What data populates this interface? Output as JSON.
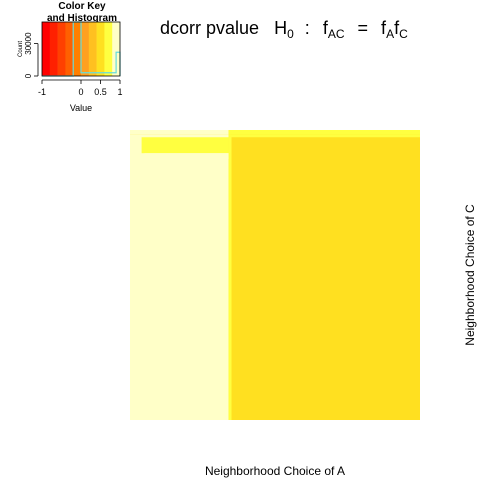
{
  "chart_data": [
    {
      "type": "heatmap",
      "title": {
        "text": "dcorr pvalue",
        "h": "H",
        "h_sub": "0",
        "colon": ":",
        "lhs": "f",
        "lhs_sub": "AC",
        "eq": "=",
        "rhs1": "f",
        "rhs1_sub": "A",
        "rhs2": "f",
        "rhs2_sub": "C"
      },
      "xlabel": "Neighborhood Choice of A",
      "ylabel": "Neighborhood Choice of C",
      "x_range": [
        0,
        1
      ],
      "y_range": [
        0,
        1
      ],
      "cells": [
        {
          "x0": 0.0,
          "x1": 1.0,
          "y0": 0.0,
          "y1": 1.0,
          "value": 0.5
        },
        {
          "x0": 0.0,
          "x1": 0.34,
          "y0": 0.0,
          "y1": 0.985,
          "value": 1.0
        },
        {
          "x0": 0.34,
          "x1": 0.35,
          "y0": 0.0,
          "y1": 0.985,
          "value": 0.7
        },
        {
          "x0": 0.04,
          "x1": 0.34,
          "y0": 0.95,
          "y1": 0.975,
          "value": 0.7
        },
        {
          "x0": 0.04,
          "x1": 0.34,
          "y0": 0.92,
          "y1": 0.95,
          "value": 0.8
        },
        {
          "x0": 0.05,
          "x1": 0.34,
          "y0": 0.9,
          "y1": 0.92,
          "value": 0.9
        },
        {
          "x0": 0.0,
          "x1": 0.34,
          "y0": 0.985,
          "y1": 1.0,
          "value": 0.9
        },
        {
          "x0": 0.34,
          "x1": 1.0,
          "y0": 0.985,
          "y1": 1.0,
          "value": 0.8
        },
        {
          "x0": 0.34,
          "x1": 1.0,
          "y0": 0.975,
          "y1": 0.985,
          "value": 0.7
        }
      ]
    },
    {
      "type": "bar",
      "title_line1": "Color Key",
      "title_line2": "and Histogram",
      "xlabel": "Value",
      "ylabel": "Count",
      "xlim": [
        -1,
        1
      ],
      "ylim": [
        0,
        50000
      ],
      "x_ticks": [
        "-1",
        "0",
        "0.5",
        "1"
      ],
      "x_tick_values": [
        -1,
        0,
        0.5,
        1
      ],
      "y_ticks": [
        "0",
        "30000"
      ],
      "y_tick_values": [
        0,
        30000
      ],
      "color_breaks": [
        -1,
        -0.8,
        -0.6,
        -0.4,
        -0.2,
        0,
        0.2,
        0.4,
        0.6,
        0.8,
        1
      ],
      "colors": [
        "#ff0000",
        "#ff2000",
        "#ff4000",
        "#ff6000",
        "#ff8000",
        "#ffa020",
        "#ffc020",
        "#ffe020",
        "#ffff40",
        "#ffffc8"
      ],
      "histogram": {
        "x": [
          -1,
          -0.2,
          -0.2,
          0.0,
          0.0,
          0.4,
          0.4,
          0.9,
          0.9,
          1.0,
          1.0
        ],
        "y": [
          0,
          0,
          52000,
          52000,
          3000,
          3000,
          3000,
          3000,
          22000,
          22000,
          0
        ]
      },
      "line_color": "#66dddd"
    }
  ]
}
